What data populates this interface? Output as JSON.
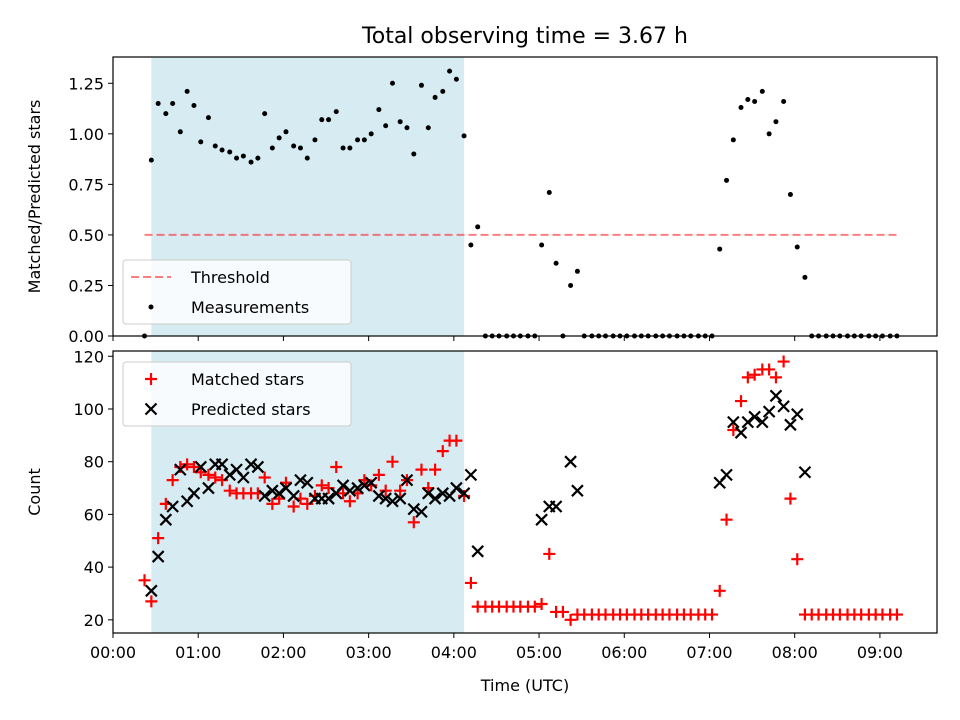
{
  "figure": {
    "title": "Total observing time = 3.67 h",
    "shade_color": "#add8e6",
    "threshold_color": "#ff0000",
    "matched_color": "#ff0000",
    "predicted_color": "#000000"
  },
  "chart_data": [
    {
      "type": "scatter",
      "ylabel": "Matched/Predicted stars",
      "xlim": [
        0.0,
        9.67
      ],
      "ylim": [
        0.0,
        1.38
      ],
      "yticks": [
        "0.00",
        "0.25",
        "0.50",
        "0.75",
        "1.00",
        "1.25"
      ],
      "shaded_interval": [
        0.45,
        4.12
      ],
      "legend_position": "lower-left",
      "threshold": {
        "name": "Threshold",
        "value": 0.5,
        "x_range": [
          0.37,
          9.22
        ]
      },
      "series": [
        {
          "name": "Measurements",
          "x": [
            0.37,
            0.45,
            0.53,
            0.62,
            0.7,
            0.79,
            0.87,
            0.95,
            1.03,
            1.12,
            1.2,
            1.28,
            1.37,
            1.45,
            1.53,
            1.62,
            1.7,
            1.78,
            1.87,
            1.95,
            2.03,
            2.12,
            2.2,
            2.28,
            2.37,
            2.45,
            2.53,
            2.62,
            2.7,
            2.78,
            2.87,
            2.95,
            3.03,
            3.12,
            3.2,
            3.28,
            3.37,
            3.45,
            3.53,
            3.62,
            3.7,
            3.78,
            3.87,
            3.95,
            4.03,
            4.12,
            4.2,
            4.28,
            4.37,
            4.45,
            4.53,
            4.62,
            4.7,
            4.78,
            4.87,
            4.95,
            5.03,
            5.12,
            5.2,
            5.28,
            5.37,
            5.45,
            5.53,
            5.62,
            5.7,
            5.78,
            5.87,
            5.95,
            6.03,
            6.12,
            6.2,
            6.28,
            6.37,
            6.45,
            6.53,
            6.62,
            6.7,
            6.78,
            6.87,
            6.95,
            7.03,
            7.12,
            7.2,
            7.28,
            7.37,
            7.45,
            7.53,
            7.62,
            7.7,
            7.78,
            7.87,
            7.95,
            8.03,
            8.12,
            8.2,
            8.28,
            8.37,
            8.45,
            8.53,
            8.62,
            8.7,
            8.78,
            8.87,
            8.95,
            9.03,
            9.12,
            9.2
          ],
          "values": [
            0,
            0.87,
            1.15,
            1.1,
            1.15,
            1.01,
            1.21,
            1.14,
            0.96,
            1.08,
            0.94,
            0.92,
            0.91,
            0.88,
            0.89,
            0.86,
            0.88,
            1.1,
            0.93,
            0.98,
            1.01,
            0.94,
            0.93,
            0.88,
            0.97,
            1.07,
            1.07,
            1.11,
            0.93,
            0.93,
            0.97,
            0.97,
            1.0,
            1.12,
            1.04,
            1.25,
            1.06,
            1.03,
            0.9,
            1.24,
            1.03,
            1.18,
            1.21,
            1.31,
            1.27,
            0.99,
            0.45,
            0.54,
            0,
            0,
            0,
            0,
            0,
            0,
            0,
            0,
            0.45,
            0.71,
            0.36,
            0,
            0.25,
            0.32,
            0,
            0,
            0,
            0,
            0,
            0,
            0,
            0,
            0,
            0,
            0,
            0,
            0,
            0,
            0,
            0,
            0,
            0,
            0,
            0.43,
            0.77,
            0.97,
            1.13,
            1.17,
            1.16,
            1.21,
            1.0,
            1.06,
            1.16,
            0.7,
            0.44,
            0.29,
            0,
            0,
            0,
            0,
            0,
            0,
            0,
            0,
            0,
            0,
            0,
            0,
            0
          ]
        }
      ]
    },
    {
      "type": "scatter",
      "ylabel": "Count",
      "xlabel": "Time (UTC)",
      "xlim": [
        0.0,
        9.67
      ],
      "ylim": [
        15,
        122
      ],
      "yticks": [
        "20",
        "40",
        "60",
        "80",
        "100",
        "120"
      ],
      "xticks": [
        "00:00",
        "01:00",
        "02:00",
        "03:00",
        "04:00",
        "05:00",
        "06:00",
        "07:00",
        "08:00",
        "09:00"
      ],
      "shaded_interval": [
        0.45,
        4.12
      ],
      "legend_position": "upper-left",
      "series": [
        {
          "name": "Matched stars",
          "marker": "+",
          "x": [
            0.37,
            0.45,
            0.53,
            0.62,
            0.7,
            0.79,
            0.87,
            0.95,
            1.03,
            1.12,
            1.2,
            1.28,
            1.37,
            1.45,
            1.53,
            1.62,
            1.7,
            1.78,
            1.87,
            1.95,
            2.03,
            2.12,
            2.2,
            2.28,
            2.37,
            2.45,
            2.53,
            2.62,
            2.7,
            2.78,
            2.87,
            2.95,
            3.03,
            3.12,
            3.2,
            3.28,
            3.37,
            3.45,
            3.53,
            3.62,
            3.7,
            3.78,
            3.87,
            3.95,
            4.03,
            4.12,
            4.2,
            4.28,
            4.37,
            4.45,
            4.53,
            4.62,
            4.7,
            4.78,
            4.87,
            4.95,
            5.03,
            5.12,
            5.2,
            5.28,
            5.37,
            5.45,
            5.53,
            5.62,
            5.7,
            5.78,
            5.87,
            5.95,
            6.03,
            6.12,
            6.2,
            6.28,
            6.37,
            6.45,
            6.53,
            6.62,
            6.7,
            6.78,
            6.87,
            6.95,
            7.03,
            7.12,
            7.2,
            7.28,
            7.37,
            7.45,
            7.53,
            7.62,
            7.7,
            7.78,
            7.87,
            7.95,
            8.03,
            8.12,
            8.2,
            8.28,
            8.37,
            8.45,
            8.53,
            8.62,
            8.7,
            8.78,
            8.87,
            8.95,
            9.03,
            9.12,
            9.2
          ],
          "values": [
            35,
            27,
            51,
            64,
            73,
            78,
            79,
            78,
            76,
            75,
            74,
            73,
            69,
            68,
            68,
            68,
            68,
            74,
            64,
            66,
            72,
            63,
            66,
            64,
            67,
            71,
            70,
            78,
            68,
            65,
            68,
            73,
            71,
            75,
            69,
            80,
            69,
            73,
            57,
            77,
            70,
            77,
            84,
            88,
            88,
            67,
            34,
            25,
            25,
            25,
            25,
            25,
            25,
            25,
            25,
            25,
            26,
            45,
            23,
            23,
            20,
            22,
            22,
            22,
            22,
            22,
            22,
            22,
            22,
            22,
            22,
            22,
            22,
            22,
            22,
            22,
            22,
            22,
            22,
            22,
            22,
            31,
            58,
            92,
            103,
            112,
            113,
            115,
            115,
            112,
            118,
            66,
            43,
            22,
            22,
            22,
            22,
            22,
            22,
            22,
            22,
            22,
            22,
            22,
            22,
            22,
            22
          ]
        },
        {
          "name": "Predicted stars",
          "marker": "x",
          "x": [
            0.45,
            0.53,
            0.62,
            0.7,
            0.79,
            0.87,
            0.95,
            1.03,
            1.12,
            1.2,
            1.28,
            1.37,
            1.45,
            1.53,
            1.62,
            1.7,
            1.78,
            1.87,
            1.95,
            2.03,
            2.12,
            2.2,
            2.28,
            2.37,
            2.45,
            2.53,
            2.62,
            2.7,
            2.78,
            2.87,
            2.95,
            3.03,
            3.12,
            3.2,
            3.28,
            3.37,
            3.45,
            3.53,
            3.62,
            3.7,
            3.78,
            3.87,
            3.95,
            4.03,
            4.12,
            4.2,
            4.28,
            5.03,
            5.12,
            5.2,
            5.37,
            5.45,
            7.12,
            7.2,
            7.28,
            7.37,
            7.45,
            7.53,
            7.62,
            7.7,
            7.78,
            7.87,
            7.95,
            8.03,
            8.12
          ],
          "values": [
            31,
            44,
            58,
            63,
            77,
            65,
            68,
            78,
            70,
            79,
            79,
            75,
            77,
            74,
            79,
            78,
            67,
            69,
            68,
            70,
            67,
            73,
            72,
            66,
            66,
            66,
            68,
            71,
            69,
            70,
            71,
            72,
            67,
            66,
            65,
            66,
            73,
            62,
            61,
            68,
            66,
            68,
            67,
            70,
            68,
            75,
            46,
            58,
            63,
            63,
            80,
            69,
            72,
            75,
            95,
            91,
            95,
            97,
            95,
            99,
            105,
            101,
            94,
            98,
            76
          ]
        }
      ]
    }
  ]
}
